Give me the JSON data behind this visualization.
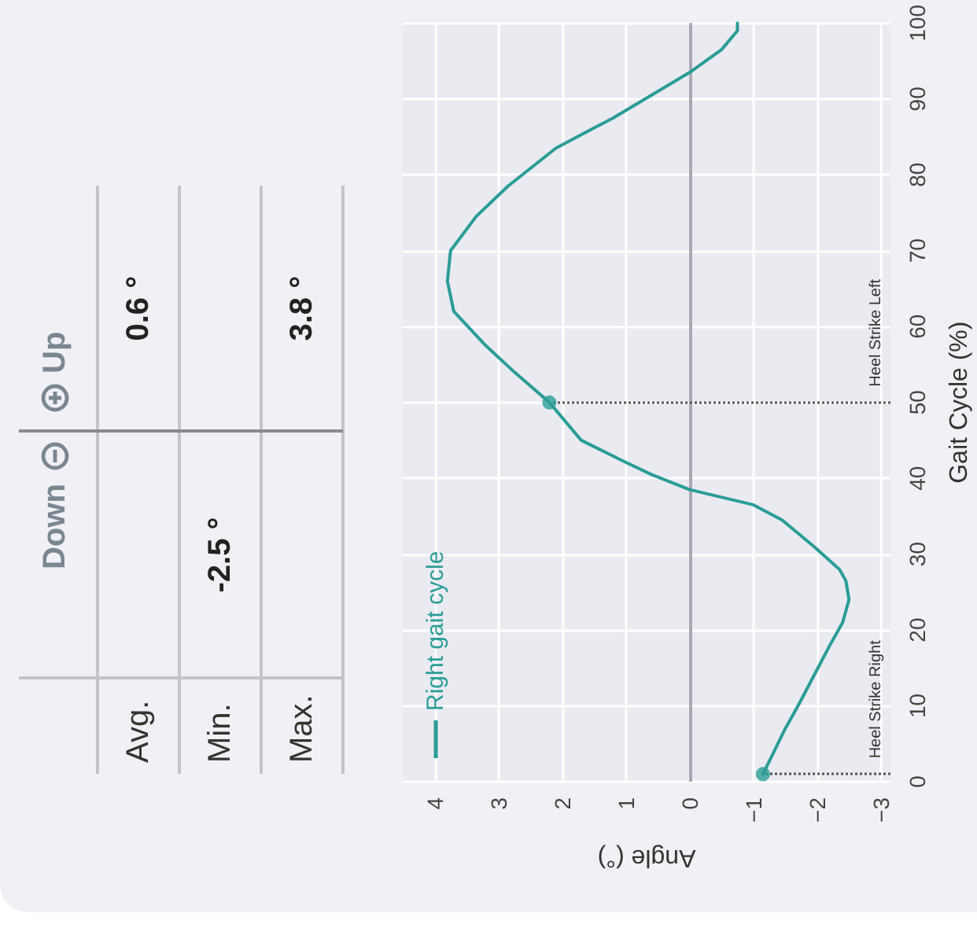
{
  "chart_data": [
    {
      "type": "line",
      "xlabel": "Angle (°)",
      "ylabel": "Gait Cycle (%)",
      "xlim": [
        4.5,
        -3.15
      ],
      "xticks": [
        4,
        3,
        2,
        1,
        0,
        {
          "value": -1,
          "label": "−1"
        },
        {
          "value": -2,
          "label": "−2"
        },
        {
          "value": -3,
          "label": "−3"
        }
      ],
      "ylim": [
        0,
        100
      ],
      "yticks": [
        0,
        10,
        20,
        30,
        40,
        50,
        60,
        70,
        80,
        90,
        100
      ],
      "grid": true,
      "legend": "bottom left",
      "series": [
        {
          "name": "Right gait cycle",
          "color": "#2a9d96",
          "marker": "none",
          "line_style": "solid",
          "values": [
            1,
            7,
            10,
            14,
            18,
            21,
            24,
            26.5,
            28,
            31,
            34.5,
            36.5,
            38.5,
            40.5,
            42.5,
            45,
            50,
            54,
            57.5,
            62,
            66,
            70,
            74.5,
            78.5,
            83.5,
            87.5,
            91,
            93.5,
            96.5,
            99,
            100
          ],
          "x": [
            -1.15,
            -1.5,
            -1.7,
            -1.95,
            -2.2,
            -2.4,
            -2.5,
            -2.45,
            -2.35,
            -1.95,
            -1.45,
            -1.0,
            0,
            0.6,
            1.1,
            1.7,
            2.2,
            2.75,
            3.2,
            3.7,
            3.8,
            3.75,
            3.35,
            2.85,
            2.1,
            1.2,
            0.5,
            0,
            -0.5,
            -0.75,
            -0.75
          ]
        },
        {
          "type": "scatter",
          "color": "#2a9d96",
          "marker": "circle",
          "x": [
            -1.15,
            2.2
          ],
          "values": [
            1,
            50
          ]
        }
      ],
      "ref_lines": [
        {
          "axis": "x",
          "value": 0,
          "color": "#a9a9b3",
          "line_style": "solid"
        },
        {
          "axis": "y",
          "value": 1,
          "label": "Heel Strike Right",
          "color": "#555555",
          "line_style": "dotted"
        },
        {
          "axis": "y",
          "value": 50,
          "label": "Heel Strike Left",
          "color": "#555555",
          "line_style": "dotted"
        }
      ]
    },
    {
      "type": "other",
      "annotations": [
        "Down",
        "Up"
      ],
      "categories": [
        "Avg.",
        "Min.",
        "Max."
      ],
      "cell_labels": [
        [
          null,
          "0.6 °"
        ],
        [
          "-2.5 °",
          null
        ],
        [
          null,
          "3.8 °"
        ]
      ]
    }
  ]
}
